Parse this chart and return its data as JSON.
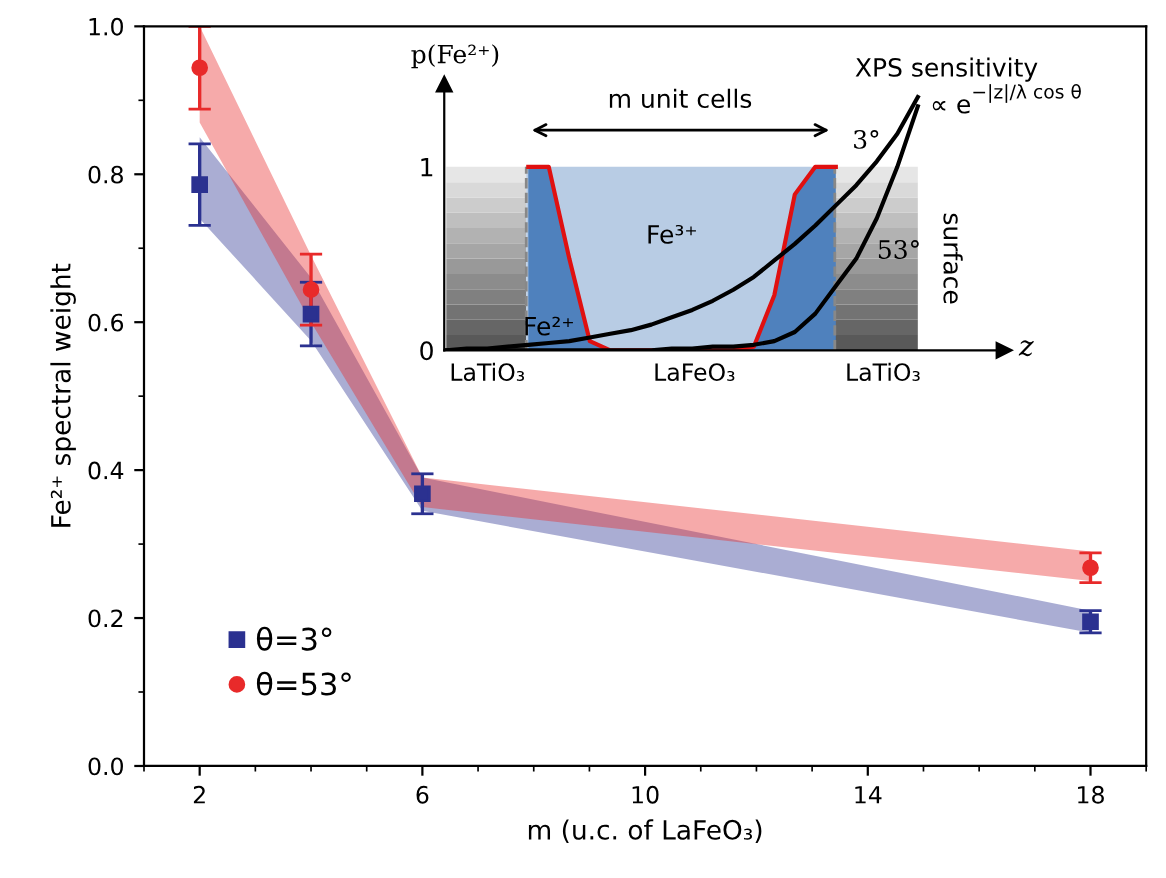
{
  "chart_data": [
    {
      "type": "scatter",
      "xlabel": "m (u.c. of LaFeO₃)",
      "ylabel": "Fe²⁺ spectral weight",
      "x": [
        2,
        4,
        6,
        18
      ],
      "xlim": [
        1,
        19
      ],
      "xticks": [
        2,
        6,
        10,
        14,
        18
      ],
      "ylim": [
        0,
        1
      ],
      "yticks": [
        {
          "value": 0,
          "label": "0.0"
        },
        {
          "value": 0.2,
          "label": "0.2"
        },
        {
          "value": 0.4,
          "label": "0.4"
        },
        {
          "value": 0.6,
          "label": "0.6"
        },
        {
          "value": 0.8,
          "label": "0.8"
        },
        {
          "value": 1,
          "label": "1.0"
        }
      ],
      "legend": "bottom left",
      "series": [
        {
          "name": "θ=3°",
          "color": "#2b3190",
          "marker": "square",
          "values": [
            0.786,
            0.611,
            0.368,
            0.195
          ],
          "errors": [
            0.055,
            0.043,
            0.027,
            0.015
          ],
          "lower": [
            0.74,
            0.575,
            0.345,
            0.18
          ],
          "upper": [
            0.85,
            0.66,
            0.39,
            0.21
          ]
        },
        {
          "name": "θ=53°",
          "color": "#e82a2a",
          "marker": "circle",
          "values": [
            0.944,
            0.644,
            null,
            0.268
          ],
          "errors": [
            0.056,
            0.048,
            null,
            0.02
          ],
          "lower": [
            0.87,
            0.6,
            0.35,
            0.25
          ],
          "upper": [
            1.0,
            0.69,
            0.39,
            0.29
          ]
        }
      ]
    },
    {
      "type": "line",
      "categories": [
        null,
        null,
        null,
        null,
        null,
        null,
        null,
        null,
        null,
        null,
        null,
        null,
        null,
        null,
        null,
        null,
        null,
        null,
        null,
        null,
        null,
        null,
        null,
        null
      ],
      "ylim": [
        0,
        1.45
      ],
      "yticks": [
        0,
        1
      ],
      "tick_labels": "y",
      "xlabel": "z",
      "ylabel": "p(Fe²⁺)",
      "series": [
        {
          "color": "#e01010",
          "values": [
            null,
            null,
            null,
            null,
            1,
            1,
            0.5,
            0.05,
            0,
            0,
            0,
            0,
            0,
            0,
            0,
            0.02,
            0.3,
            0.85,
            1,
            1,
            null,
            null,
            null,
            null
          ]
        },
        {
          "name": "3°",
          "color": "#000000",
          "values": [
            0,
            0.01,
            0.01,
            0.02,
            0.03,
            0.04,
            0.05,
            0.07,
            0.09,
            0.11,
            0.14,
            0.18,
            0.22,
            0.27,
            0.33,
            0.4,
            0.49,
            0.58,
            0.68,
            0.79,
            0.9,
            1.03,
            1.18,
            1.38
          ]
        },
        {
          "name": "53°",
          "color": "#000000",
          "values": [
            0,
            0,
            0,
            0,
            0,
            0,
            0,
            0,
            0,
            0,
            0,
            0.01,
            0.01,
            0.02,
            0.02,
            0.03,
            0.05,
            0.1,
            0.2,
            0.35,
            0.5,
            0.72,
            1.0,
            1.33
          ]
        }
      ],
      "annotations": [
        "m unit cells",
        "Fe³⁺",
        "Fe²⁺",
        "LaTiO₃",
        "LaFeO₃",
        "LaTiO₃",
        "surface",
        "XPS sensitivity",
        "∝ e$^{−|z|/λ cos θ}$"
      ]
    }
  ]
}
